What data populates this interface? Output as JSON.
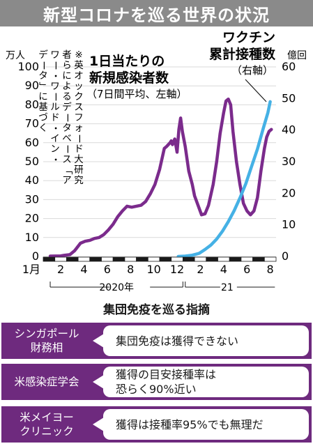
{
  "header": {
    "title": "新型コロナを巡る世界の状況"
  },
  "chart_data": {
    "type": "line",
    "left_axis": {
      "unit": "万人",
      "min": 0,
      "max": 100,
      "ticks": [
        "0",
        "10",
        "20",
        "30",
        "40",
        "50",
        "60",
        "70",
        "80",
        "90",
        "100"
      ]
    },
    "right_axis": {
      "unit": "億回",
      "min": 0,
      "max": 60,
      "ticks": [
        "0",
        "10",
        "20",
        "30",
        "40",
        "50",
        "60"
      ]
    },
    "x_ticks": [
      {
        "label": "1月",
        "m": 0
      },
      {
        "label": "2",
        "m": 1
      },
      {
        "label": "4",
        "m": 3
      },
      {
        "label": "6",
        "m": 5
      },
      {
        "label": "8",
        "m": 7
      },
      {
        "label": "10",
        "m": 9
      },
      {
        "label": "12",
        "m": 11
      },
      {
        "label": "2",
        "m": 13
      },
      {
        "label": "4",
        "m": 15
      },
      {
        "label": "6",
        "m": 17
      },
      {
        "label": "8",
        "m": 19
      }
    ],
    "year_labels": [
      "2020年",
      "21"
    ],
    "source_note": "※英オックスフォード大研究者らによるデータベース「アワー・ワールド・イン・データ」に基づく",
    "series": [
      {
        "label_lines": [
          "1日当たりの",
          "新規感染者数"
        ],
        "note": "（7日間平均、左軸）",
        "axis": "left",
        "color": "#7b2b8c",
        "points": [
          [
            0.6,
            0.2
          ],
          [
            1.5,
            0.3
          ],
          [
            1.8,
            0.6
          ],
          [
            2.3,
            1
          ],
          [
            2.7,
            3
          ],
          [
            3.2,
            7
          ],
          [
            3.6,
            8
          ],
          [
            4.0,
            8.5
          ],
          [
            4.4,
            9.5
          ],
          [
            4.8,
            10
          ],
          [
            5.2,
            11.5
          ],
          [
            5.6,
            14
          ],
          [
            6.0,
            17
          ],
          [
            6.4,
            21
          ],
          [
            6.8,
            24
          ],
          [
            7.2,
            26.5
          ],
          [
            7.6,
            26
          ],
          [
            8.0,
            26.5
          ],
          [
            8.4,
            27
          ],
          [
            8.8,
            29
          ],
          [
            9.2,
            33
          ],
          [
            9.6,
            38
          ],
          [
            10.0,
            46
          ],
          [
            10.4,
            57
          ],
          [
            10.6,
            58
          ],
          [
            10.9,
            60
          ],
          [
            11.0,
            61
          ],
          [
            11.1,
            59
          ],
          [
            11.3,
            62
          ],
          [
            11.5,
            55
          ],
          [
            11.65,
            67
          ],
          [
            11.8,
            73
          ],
          [
            11.95,
            66
          ],
          [
            12.2,
            58
          ],
          [
            12.5,
            45
          ],
          [
            12.8,
            38
          ],
          [
            13.0,
            32
          ],
          [
            13.3,
            27
          ],
          [
            13.6,
            22
          ],
          [
            13.9,
            22.5
          ],
          [
            14.2,
            27
          ],
          [
            14.6,
            38
          ],
          [
            14.9,
            50
          ],
          [
            15.2,
            65
          ],
          [
            15.5,
            76
          ],
          [
            15.7,
            82
          ],
          [
            15.9,
            83
          ],
          [
            16.1,
            80
          ],
          [
            16.3,
            66
          ],
          [
            16.6,
            50
          ],
          [
            16.9,
            38
          ],
          [
            17.2,
            28
          ],
          [
            17.5,
            24
          ],
          [
            17.8,
            22
          ],
          [
            18.1,
            24
          ],
          [
            18.4,
            31
          ],
          [
            18.7,
            45
          ],
          [
            19.0,
            57
          ],
          [
            19.2,
            63
          ],
          [
            19.4,
            66
          ],
          [
            19.6,
            67
          ]
        ]
      },
      {
        "label_lines": [
          "ワクチン",
          "累計接種数"
        ],
        "note": "（右軸）",
        "axis": "right",
        "color": "#45b1e5",
        "points": [
          [
            11.6,
            0
          ],
          [
            12.2,
            0.1
          ],
          [
            12.8,
            0.4
          ],
          [
            13.4,
            1
          ],
          [
            13.9,
            2.2
          ],
          [
            14.4,
            3.6
          ],
          [
            14.9,
            5.5
          ],
          [
            15.4,
            8
          ],
          [
            15.9,
            11
          ],
          [
            16.4,
            14.5
          ],
          [
            16.9,
            18.5
          ],
          [
            17.4,
            23
          ],
          [
            17.9,
            28.5
          ],
          [
            18.4,
            34
          ],
          [
            18.9,
            40.5
          ],
          [
            19.3,
            45.5
          ],
          [
            19.5,
            49
          ]
        ]
      }
    ]
  },
  "section2": {
    "title": "集団免疫を巡る指摘",
    "rows": [
      {
        "label_lines": [
          "シンガポール",
          "財務相"
        ],
        "text_lines": [
          "集団免疫は獲得できない"
        ]
      },
      {
        "label_lines": [
          "米感染症学会"
        ],
        "text_lines": [
          "獲得の目安接種率は",
          "恐らく90%近い"
        ]
      },
      {
        "label_lines": [
          "米メイヨー",
          "クリニック"
        ],
        "text_lines": [
          "獲得は接種率95%でも無理だ"
        ]
      }
    ]
  }
}
